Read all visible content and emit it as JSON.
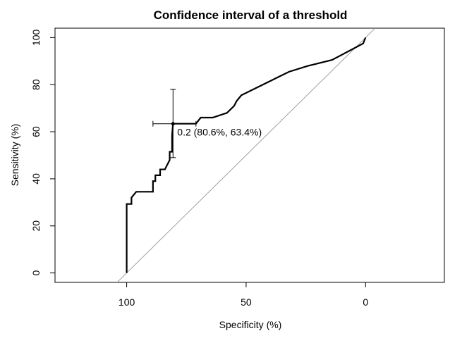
{
  "chart_data": {
    "type": "line",
    "title": "Confidence interval of a threshold",
    "xlabel": "Specificity (%)",
    "ylabel": "Sensitivity (%)",
    "x_reversed": true,
    "xlim": [
      130,
      -33
    ],
    "ylim": [
      -4,
      104
    ],
    "xticks": [
      100,
      50,
      0
    ],
    "yticks": [
      0,
      20,
      40,
      60,
      80,
      100
    ],
    "grid": false,
    "reference_line": {
      "from": [
        104,
        -4
      ],
      "to": [
        -4,
        104
      ],
      "color": "#a0a0a0"
    },
    "series": [
      {
        "color": "#000000",
        "x": [
          100,
          100,
          98,
          98,
          96,
          94,
          94,
          89,
          89,
          88,
          88,
          86,
          86,
          84,
          83,
          82,
          82,
          81,
          81,
          80.6,
          79,
          71,
          69,
          64,
          58,
          55,
          54,
          52,
          46,
          40,
          36,
          32,
          24,
          22,
          14,
          1,
          1,
          0
        ],
        "y": [
          0,
          29.3,
          29.3,
          32,
          34.5,
          34.5,
          34.5,
          34.5,
          39,
          39,
          41.5,
          41.5,
          44,
          44,
          46,
          48,
          51.5,
          51.5,
          58.5,
          63.4,
          63.4,
          63.4,
          66,
          66,
          68,
          71,
          73,
          75.5,
          78.5,
          81.5,
          83.5,
          85.5,
          88,
          88.5,
          90.5,
          97.5,
          97.5,
          100
        ]
      }
    ],
    "threshold": {
      "specificity": 80.6,
      "sensitivity": 63.4,
      "ci_specificity": [
        71,
        89
      ],
      "ci_sensitivity": [
        49,
        78
      ],
      "label": "0.2 (80.6%, 63.4%)"
    }
  }
}
